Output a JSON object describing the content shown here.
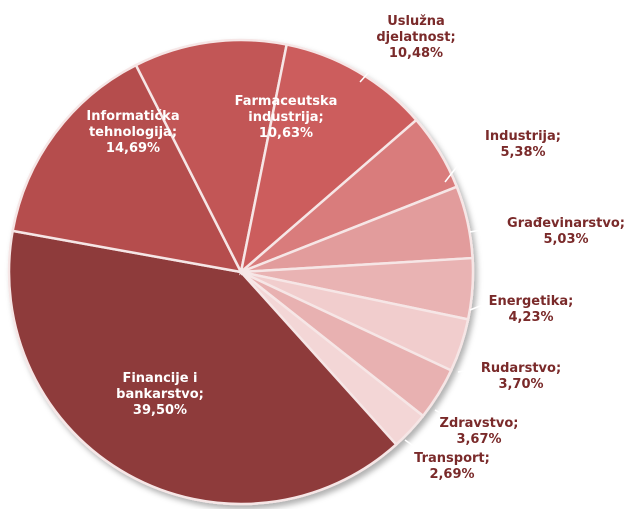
{
  "chart_data": {
    "type": "pie",
    "categories": [
      "Financije i bankarstvo;",
      "Informatička tehnologija;",
      "Farmaceutska industrija;",
      "Uslužna djelatnost;",
      "Industrija;",
      "Građevinarstvo;",
      "Energetika;",
      "Rudarstvo;",
      "Zdravstvo;",
      "Transport;"
    ],
    "values": [
      39.5,
      14.69,
      10.63,
      10.48,
      5.38,
      5.03,
      4.23,
      3.7,
      3.67,
      2.69
    ],
    "value_labels": [
      "39,50%",
      "14,69%",
      "10,63%",
      "10,48%",
      "5,38%",
      "5,03%",
      "4,23%",
      "3,70%",
      "3,67%",
      "2,69%"
    ],
    "colors": [
      "#8e3b3b",
      "#b54e4e",
      "#c25656",
      "#cc5d5d",
      "#d97b7b",
      "#e29c9c",
      "#e9b3b3",
      "#f1cdcd",
      "#e8b1b1",
      "#f3d6d6"
    ]
  }
}
